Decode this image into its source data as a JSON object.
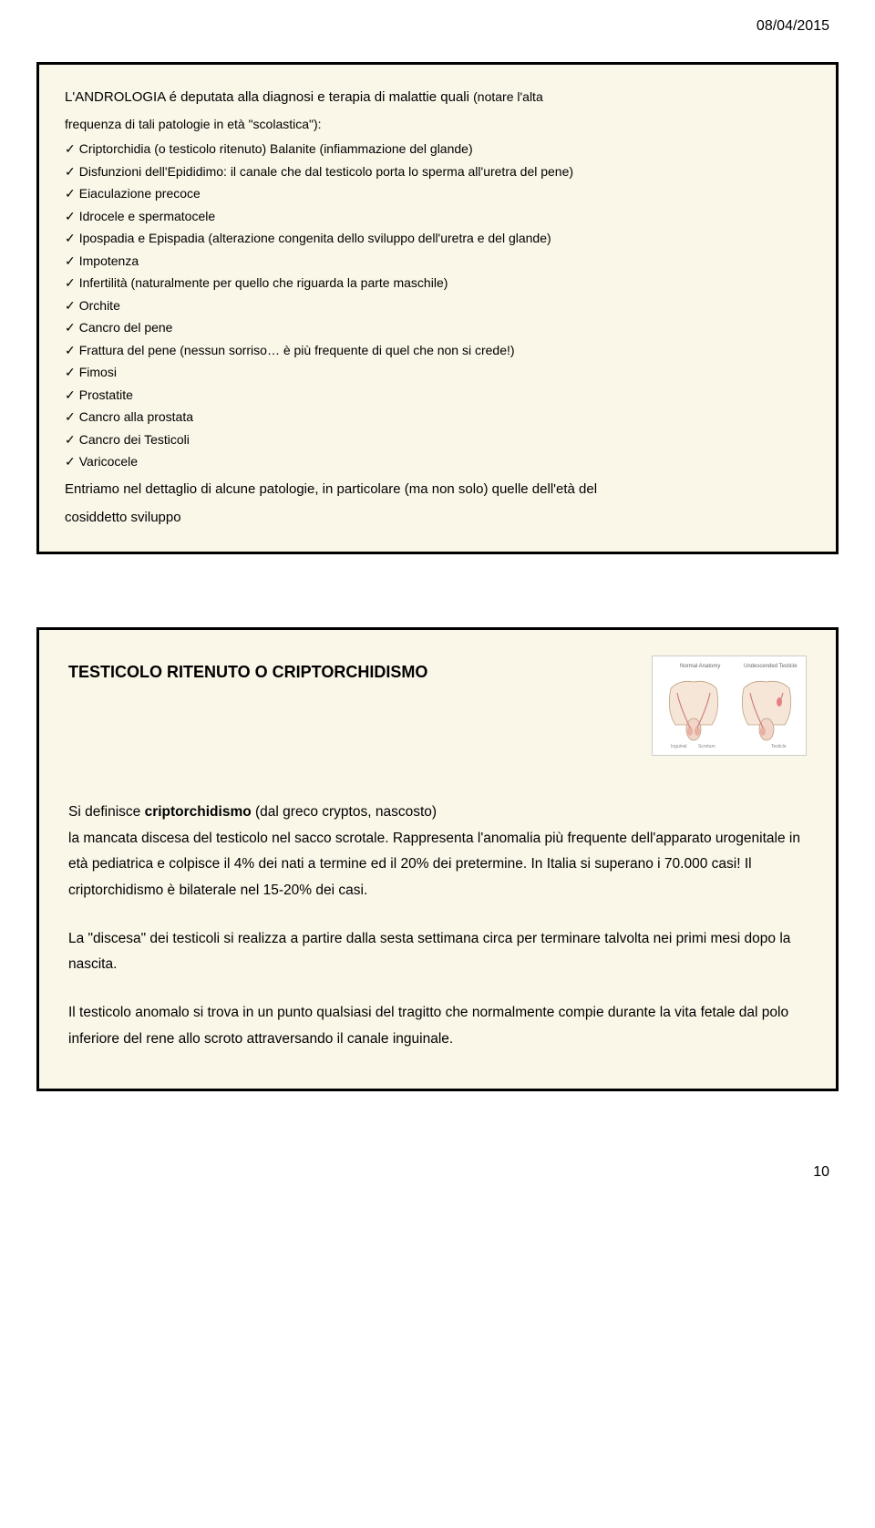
{
  "header": {
    "date": "08/04/2015"
  },
  "slide1": {
    "intro_lead": "L'ANDROLOGIA é deputata alla diagnosi e terapia di malattie quali ",
    "intro_paren": "(notare l'alta",
    "intro_line2": "frequenza di tali patologie in età \"scolastica\"):",
    "items": [
      "Criptorchidia (o testicolo ritenuto) Balanite (infiammazione del glande)",
      "Disfunzioni dell'Epididimo: il canale che dal testicolo porta lo sperma all'uretra del pene)",
      "Eiaculazione precoce",
      "Idrocele e spermatocele",
      "Ipospadia e Epispadia (alterazione congenita dello sviluppo dell'uretra e del glande)",
      "Impotenza",
      "Infertilità (naturalmente per quello che riguarda la parte maschile)",
      "Orchite",
      "Cancro del pene",
      "Frattura del pene (nessun sorriso… è più frequente di quel che non si crede!)",
      "Fimosi",
      "Prostatite",
      "Cancro alla prostata",
      "Cancro dei Testicoli",
      "Varicocele"
    ],
    "outro1": "Entriamo nel dettaglio di alcune patologie, in particolare (ma non solo) quelle dell'età del",
    "outro2": "cosiddetto sviluppo"
  },
  "slide2": {
    "title": "TESTICOLO RITENUTO O CRIPTORCHIDISMO",
    "p1_a": "Si definisce ",
    "p1_b": "criptorchidismo",
    "p1_c": " (dal greco cryptos, nascosto)",
    "p1_d": "la mancata discesa del testicolo nel sacco scrotale. Rappresenta l'anomalia più frequente dell'apparato urogenitale in età pediatrica e colpisce il 4% dei nati a termine ed il 20% dei pretermine. In Italia si superano i 70.000 casi! Il criptorchidismo è bilaterale nel 15-20% dei casi.",
    "p2": "La \"discesa\" dei testicoli si realizza a partire dalla sesta settimana circa per terminare talvolta nei primi mesi dopo la nascita.",
    "p3": "Il testicolo anomalo si trova in un punto qualsiasi del tragitto che normalmente compie durante la vita fetale dal polo inferiore del rene allo scroto attraversando il canale inguinale."
  },
  "footer": {
    "page": "10"
  },
  "colors": {
    "slide_bg": "#faf6e8",
    "border": "#000000",
    "text": "#000000"
  }
}
